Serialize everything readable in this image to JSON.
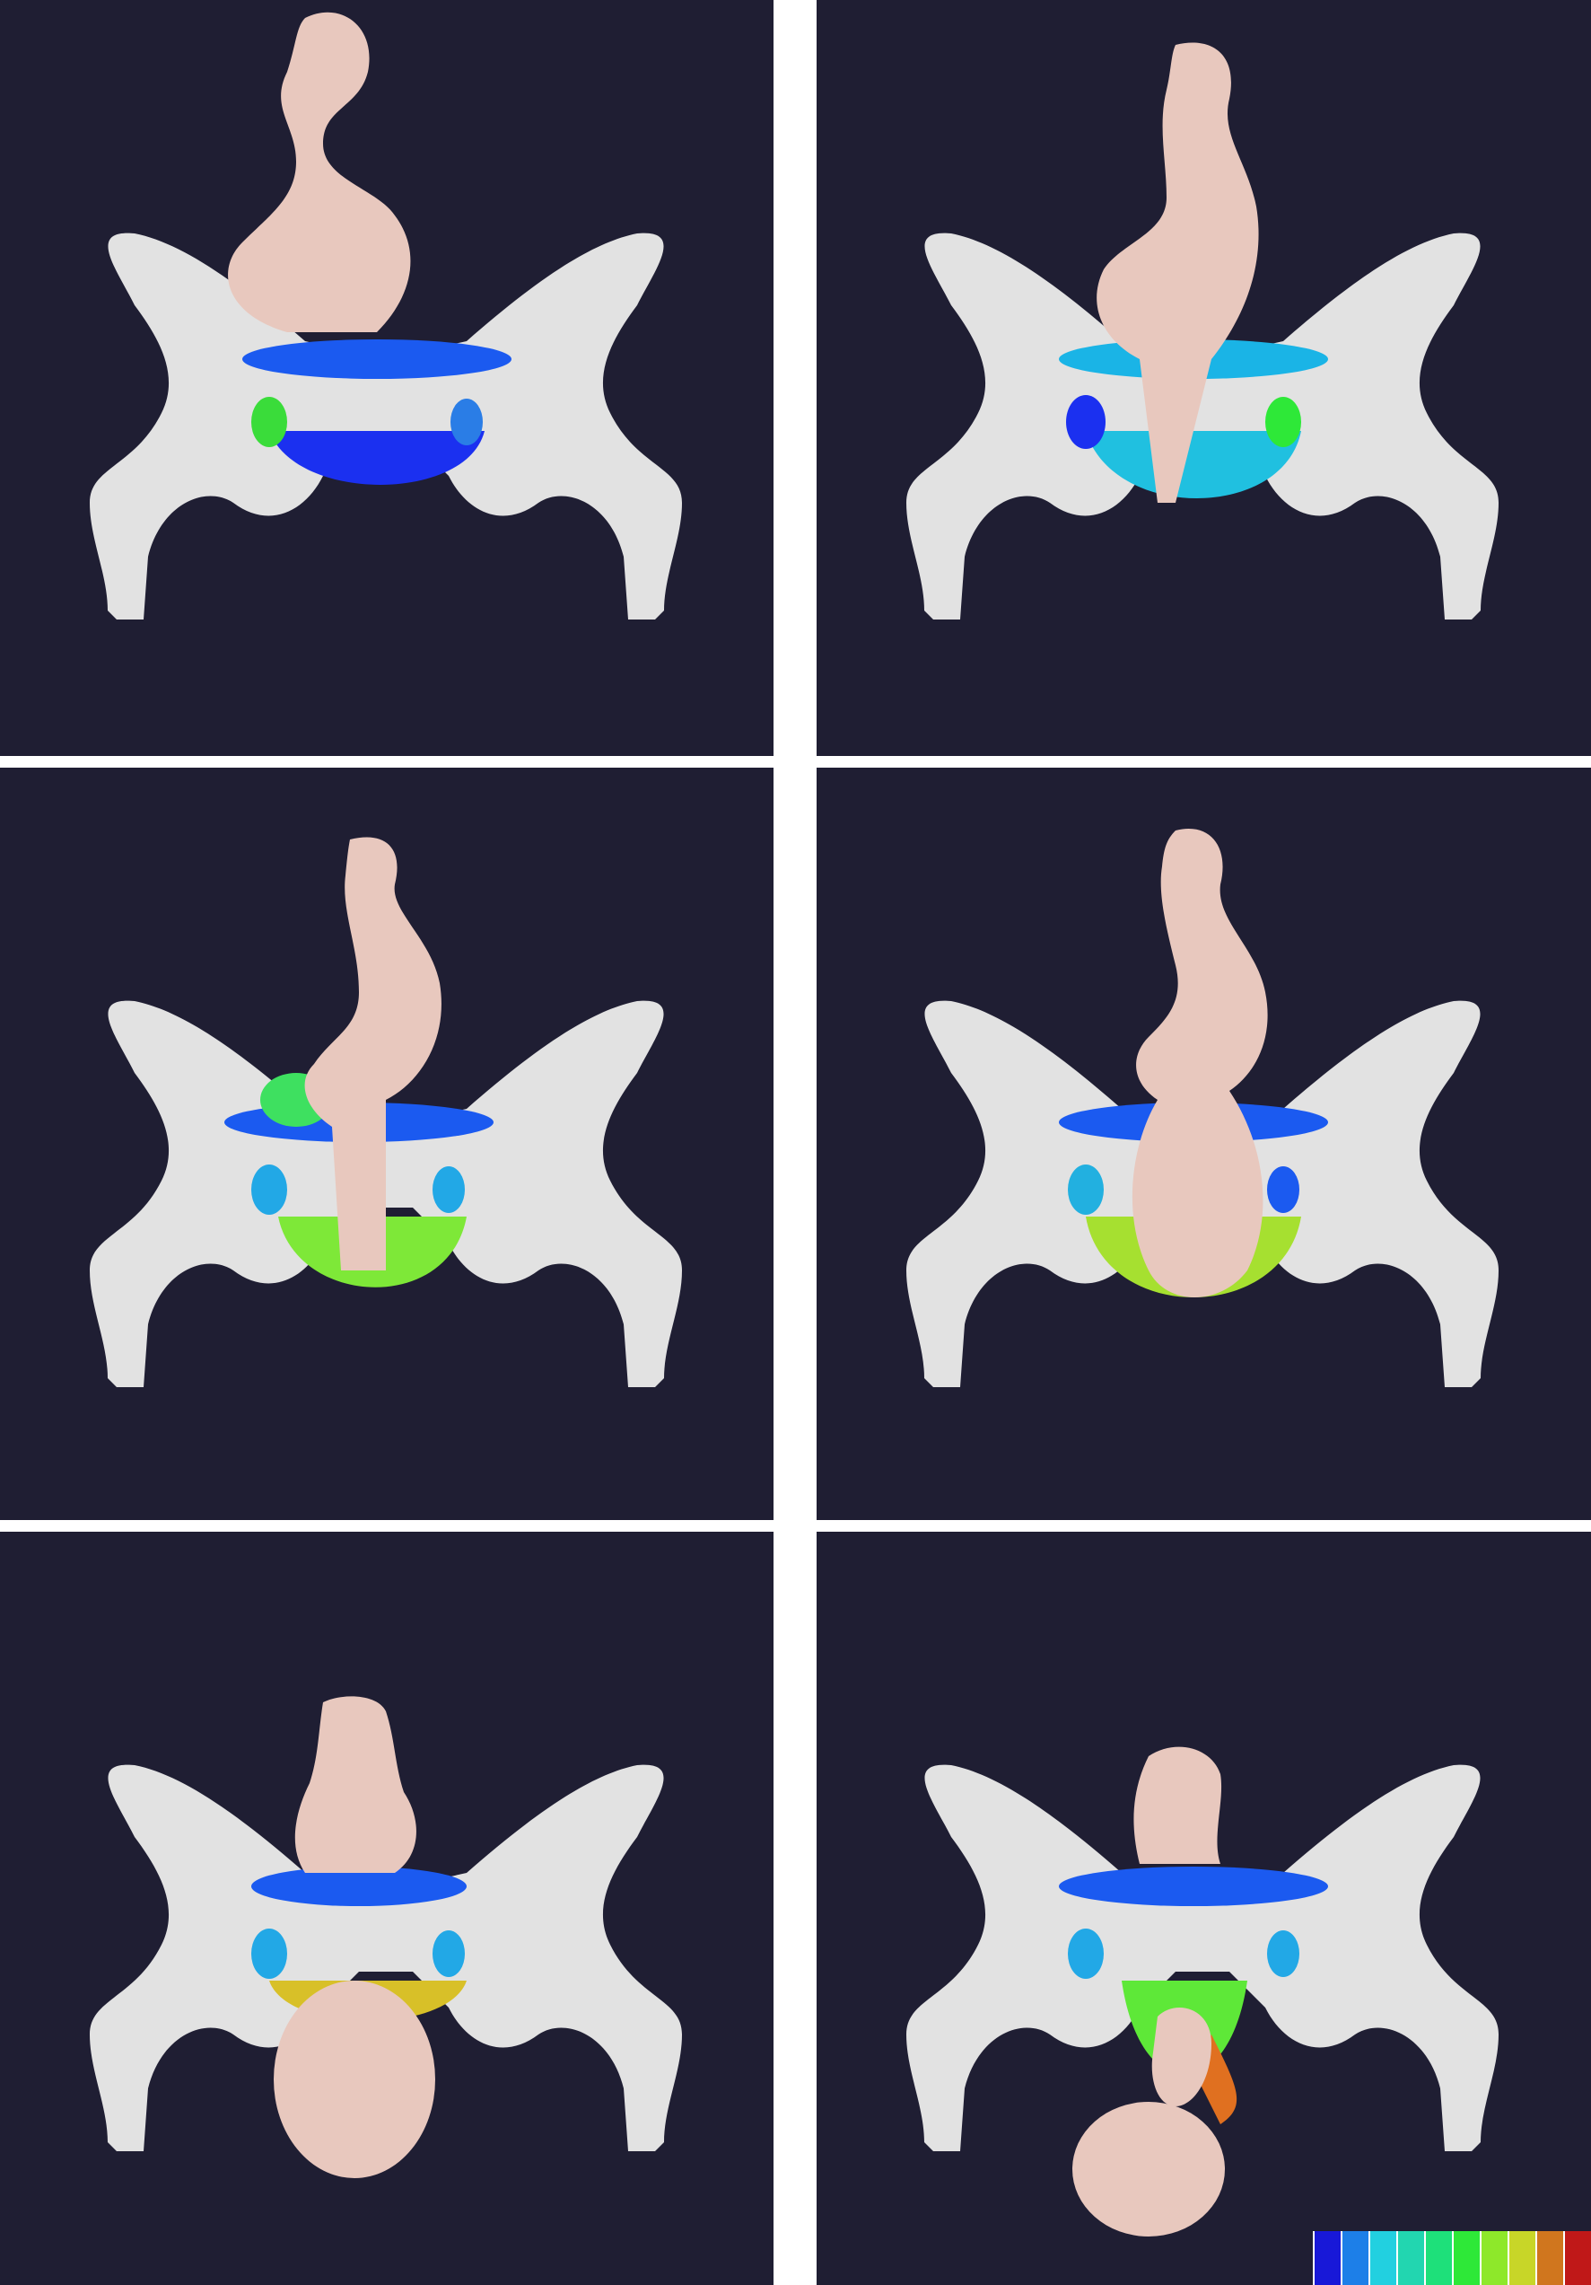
{
  "figure": {
    "panels": [
      {
        "id": "p1",
        "name": "panel-stage-1",
        "stage": 1
      },
      {
        "id": "p2",
        "name": "panel-stage-2",
        "stage": 2
      },
      {
        "id": "p3",
        "name": "panel-stage-3",
        "stage": 3
      },
      {
        "id": "p4",
        "name": "panel-stage-4",
        "stage": 4
      },
      {
        "id": "p5",
        "name": "panel-stage-5",
        "stage": 5
      },
      {
        "id": "p6",
        "name": "panel-stage-6",
        "stage": 6
      }
    ],
    "colors": {
      "background": "#1f1e33",
      "bone": "#e6e6e6",
      "bone_shadow": "#9a9a9a",
      "fetus": "#e9c9bf",
      "fetus_shadow": "#b89890",
      "pelvic_floor_low": "#1b3cf0"
    },
    "colorbar": {
      "swatches": [
        "#1818d8",
        "#1d7fe8",
        "#22d0e0",
        "#22d6b0",
        "#1ee07a",
        "#2ee838",
        "#8ee82a",
        "#c8d628",
        "#d0761e",
        "#c01818"
      ]
    }
  }
}
